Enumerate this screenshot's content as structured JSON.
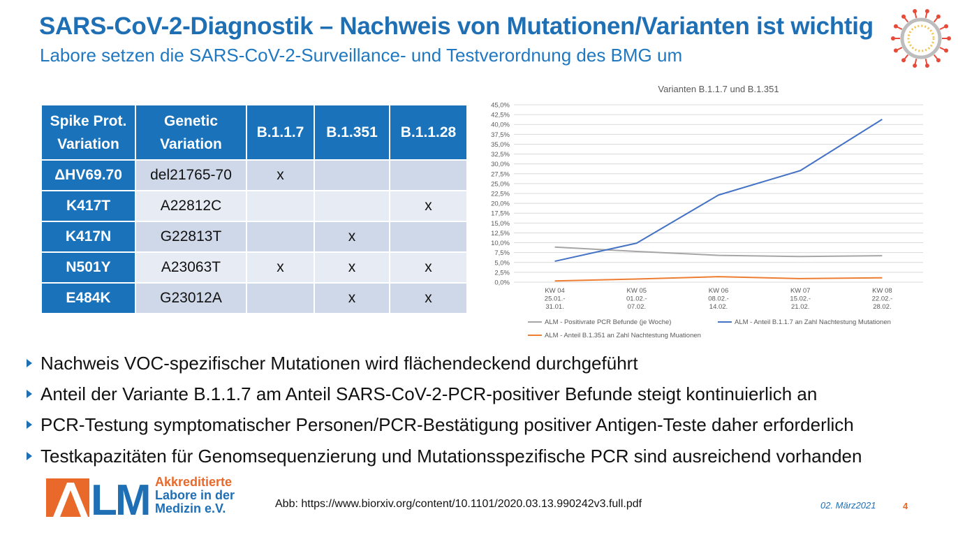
{
  "slide": {
    "title": "SARS-CoV-2-Diagnostik – Nachweis von Mutationen/Varianten ist wichtig",
    "subtitle": "Labore setzen die SARS-CoV-2-Surveillance- und Testverordnung des BMG um"
  },
  "table": {
    "headers": [
      "Spike Prot. Variation",
      "Genetic Variation",
      "B.1.1.7",
      "B.1.351",
      "B.1.1.28"
    ],
    "rows": [
      {
        "spike": "ΔHV69.70",
        "genetic": "del21765-70",
        "b117": "x",
        "b1351": "",
        "b1128": ""
      },
      {
        "spike": "K417T",
        "genetic": "A22812C",
        "b117": "",
        "b1351": "",
        "b1128": "x"
      },
      {
        "spike": "K417N",
        "genetic": "G22813T",
        "b117": "",
        "b1351": "x",
        "b1128": ""
      },
      {
        "spike": "N501Y",
        "genetic": "A23063T",
        "b117": "x",
        "b1351": "x",
        "b1128": "x"
      },
      {
        "spike": "E484K",
        "genetic": "G23012A",
        "b117": "",
        "b1351": "x",
        "b1128": "x"
      }
    ]
  },
  "chart_data": {
    "type": "line",
    "title": "Varianten B.1.1.7 und B.1.351",
    "categories": [
      [
        "KW 04",
        "25.01.-",
        "31.01."
      ],
      [
        "KW 05",
        "01.02.-",
        "07.02."
      ],
      [
        "KW 06",
        "08.02.-",
        "14.02."
      ],
      [
        "KW 07",
        "15.02.-",
        "21.02."
      ],
      [
        "KW 08",
        "22.02.-",
        "28.02."
      ]
    ],
    "yticks": [
      "0,0%",
      "2,5%",
      "5,0%",
      "7,5%",
      "10,0%",
      "12,5%",
      "15,0%",
      "17,5%",
      "20,0%",
      "22,5%",
      "25,0%",
      "27,5%",
      "30,0%",
      "32,5%",
      "35,0%",
      "37,5%",
      "40,0%",
      "42,5%",
      "45,0%"
    ],
    "ylim": [
      0,
      45
    ],
    "series": [
      {
        "name": "ALM - Positivrate PCR Befunde (je Woche)",
        "color": "#a6a6a6",
        "values": [
          8.9,
          7.8,
          6.8,
          6.5,
          6.7
        ]
      },
      {
        "name": "ALM - Anteil B.1.1.7 an Zahl Nachtestung Mutationen",
        "color": "#4472c4",
        "values": [
          5.3,
          9.9,
          22.1,
          28.3,
          41.3
        ]
      },
      {
        "name": "ALM - Anteil B.1.351 an Zahl Nachtestung Muationen",
        "color": "#ed7d31",
        "values": [
          0.3,
          0.8,
          1.4,
          0.9,
          1.1
        ]
      }
    ]
  },
  "bullets": [
    "Nachweis VOC-spezifischer Mutationen wird flächendeckend durchgeführt",
    "Anteil der Variante B.1.1.7 am Anteil SARS-CoV-2-PCR-positiver Befunde steigt kontinuierlich an",
    "PCR-Testung symptomatischer Personen/PCR-Bestätigung positiver Antigen-Teste daher erforderlich",
    "Testkapazitäten für Genomsequenzierung und Mutationsspezifische PCR sind ausreichend vorhanden"
  ],
  "logo": {
    "mark": "ALM",
    "line1": "Akkreditierte",
    "line2": "Labore in der",
    "line3": "Medizin e.V."
  },
  "footer": {
    "source": "Abb: https://www.biorxiv.org/content/10.1101/2020.03.13.990242v3.full.pdf",
    "date": "02. März2021",
    "page": "4"
  },
  "colors": {
    "primary_blue": "#1f6fb5",
    "orange": "#e8692a"
  }
}
